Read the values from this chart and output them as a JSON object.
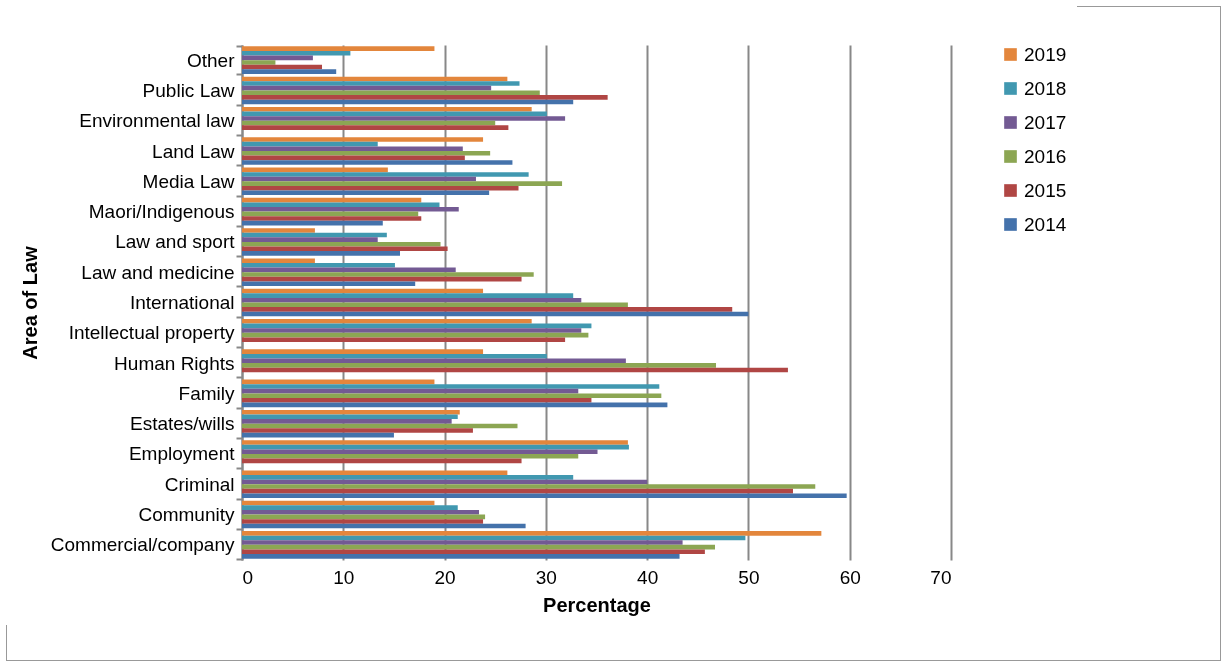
{
  "chart_data": {
    "type": "bar",
    "orientation": "horizontal",
    "xlabel": "Percentage",
    "ylabel": "Area of Law",
    "categories": [
      "Other",
      "Public Law",
      "Environmental law",
      "Land Law",
      "Media Law",
      "Maori/Indigenous",
      "Law and sport",
      "Law and medicine",
      "International",
      "Intellectual property",
      "Human Rights",
      "Family",
      "Estates/wills",
      "Employment",
      "Criminal",
      "Community",
      "Commercial/company"
    ],
    "series": [
      {
        "name": "2019",
        "color": "#e3863c",
        "values": [
          19.0,
          26.2,
          28.6,
          23.8,
          14.4,
          17.7,
          7.2,
          7.2,
          23.8,
          28.6,
          23.8,
          19.0,
          21.5,
          38.1,
          26.2,
          19.0,
          57.2
        ]
      },
      {
        "name": "2018",
        "color": "#4198b0",
        "values": [
          10.7,
          27.4,
          30.1,
          13.4,
          28.3,
          19.5,
          14.3,
          15.1,
          32.7,
          34.5,
          30.1,
          41.2,
          21.3,
          38.2,
          32.7,
          21.3,
          49.7
        ]
      },
      {
        "name": "2017",
        "color": "#735a93",
        "values": [
          7.0,
          24.6,
          31.9,
          21.8,
          23.1,
          21.4,
          13.4,
          21.1,
          33.5,
          33.5,
          37.9,
          33.2,
          20.7,
          35.1,
          40.0,
          23.4,
          43.5
        ]
      },
      {
        "name": "2016",
        "color": "#8ca653",
        "values": [
          3.3,
          29.4,
          25.0,
          24.5,
          31.6,
          17.4,
          19.6,
          28.8,
          38.1,
          34.2,
          46.8,
          41.4,
          27.2,
          33.2,
          56.6,
          24.0,
          46.7
        ]
      },
      {
        "name": "2015",
        "color": "#b04644",
        "values": [
          7.9,
          36.1,
          26.3,
          22.0,
          27.3,
          17.7,
          20.3,
          27.6,
          48.4,
          31.9,
          53.9,
          34.5,
          22.8,
          27.6,
          54.4,
          23.8,
          45.7
        ]
      },
      {
        "name": "2014",
        "color": "#4472ab",
        "values": [
          9.3,
          32.7,
          null,
          26.7,
          24.4,
          13.9,
          15.6,
          17.1,
          50.0,
          null,
          null,
          42.0,
          15.0,
          null,
          59.7,
          28.0,
          43.2
        ]
      }
    ],
    "xlim": [
      0,
      70
    ],
    "xticks": [
      0,
      10,
      20,
      30,
      40,
      50,
      60,
      70
    ],
    "grid": "x",
    "legend": "right"
  }
}
